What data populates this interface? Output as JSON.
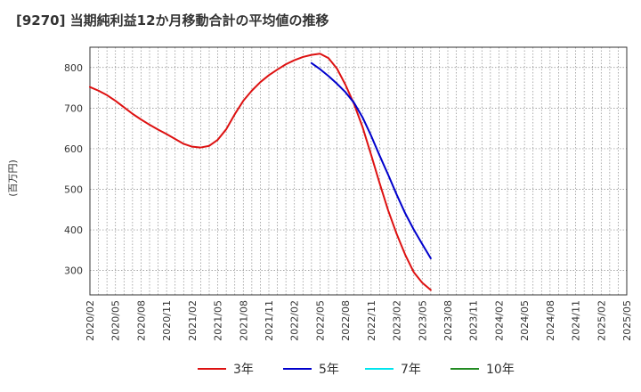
{
  "chart_data": {
    "type": "line",
    "title": "[9270]  当期純利益12か月移動合計の平均値の推移",
    "ylabel": "(百万円)",
    "xlabel": "",
    "ylim": [
      240,
      850
    ],
    "yticks": [
      300,
      400,
      500,
      600,
      700,
      800
    ],
    "x_tick_labels": [
      "2020/02",
      "2020/05",
      "2020/08",
      "2020/11",
      "2021/02",
      "2021/05",
      "2021/08",
      "2021/11",
      "2022/02",
      "2022/05",
      "2022/08",
      "2022/11",
      "2023/02",
      "2023/05",
      "2023/08",
      "2023/11",
      "2024/02",
      "2024/05",
      "2024/08",
      "2024/11",
      "2025/02",
      "2025/05"
    ],
    "grid": true,
    "legend_position": "bottom",
    "series": [
      {
        "name": "3年",
        "color": "#dd1111",
        "points": [
          [
            0,
            752
          ],
          [
            1,
            743
          ],
          [
            2,
            732
          ],
          [
            3,
            718
          ],
          [
            4,
            702
          ],
          [
            5,
            686
          ],
          [
            6,
            672
          ],
          [
            7,
            659
          ],
          [
            8,
            647
          ],
          [
            9,
            636
          ],
          [
            10,
            624
          ],
          [
            11,
            612
          ],
          [
            12,
            605
          ],
          [
            13,
            603
          ],
          [
            14,
            607
          ],
          [
            15,
            622
          ],
          [
            16,
            648
          ],
          [
            17,
            685
          ],
          [
            18,
            718
          ],
          [
            19,
            743
          ],
          [
            20,
            764
          ],
          [
            21,
            781
          ],
          [
            22,
            795
          ],
          [
            23,
            808
          ],
          [
            24,
            818
          ],
          [
            25,
            826
          ],
          [
            26,
            831
          ],
          [
            27,
            834
          ],
          [
            28,
            823
          ],
          [
            29,
            797
          ],
          [
            30,
            757
          ],
          [
            31,
            710
          ],
          [
            32,
            653
          ],
          [
            33,
            585
          ],
          [
            34,
            515
          ],
          [
            35,
            448
          ],
          [
            36,
            390
          ],
          [
            37,
            339
          ],
          [
            38,
            296
          ],
          [
            39,
            270
          ],
          [
            40,
            252
          ]
        ]
      },
      {
        "name": "5年",
        "color": "#0000cc",
        "points": [
          [
            26,
            811
          ],
          [
            27,
            796
          ],
          [
            28,
            779
          ],
          [
            29,
            760
          ],
          [
            30,
            739
          ],
          [
            31,
            713
          ],
          [
            32,
            677
          ],
          [
            33,
            632
          ],
          [
            34,
            583
          ],
          [
            35,
            536
          ],
          [
            36,
            487
          ],
          [
            37,
            441
          ],
          [
            38,
            401
          ],
          [
            39,
            365
          ],
          [
            40,
            330
          ]
        ]
      },
      {
        "name": "7年",
        "color": "#00e5ee",
        "points": []
      },
      {
        "name": "10年",
        "color": "#228b22",
        "points": []
      }
    ]
  }
}
